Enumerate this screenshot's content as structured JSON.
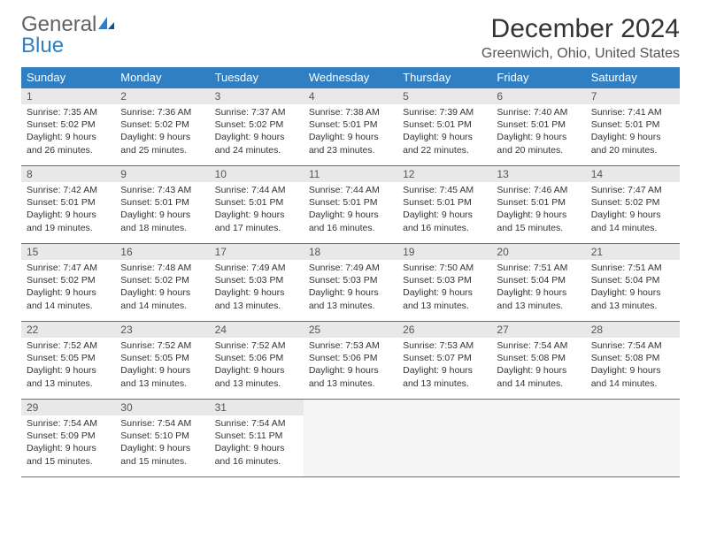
{
  "logo": {
    "general": "General",
    "blue": "Blue"
  },
  "title": "December 2024",
  "location": "Greenwich, Ohio, United States",
  "colors": {
    "header_bg": "#2f7fc2",
    "header_text": "#ffffff",
    "daynum_bg": "#e8e8e8",
    "border": "#2f7fc2",
    "empty_bg": "#f5f5f5",
    "text": "#333333"
  },
  "layout": {
    "columns": 7,
    "rows": 5,
    "first_weekday": 0,
    "days_in_month": 31
  },
  "dow": [
    "Sunday",
    "Monday",
    "Tuesday",
    "Wednesday",
    "Thursday",
    "Friday",
    "Saturday"
  ],
  "days": [
    {
      "n": 1,
      "sunrise": "7:35 AM",
      "sunset": "5:02 PM",
      "daylight": "9 hours and 26 minutes."
    },
    {
      "n": 2,
      "sunrise": "7:36 AM",
      "sunset": "5:02 PM",
      "daylight": "9 hours and 25 minutes."
    },
    {
      "n": 3,
      "sunrise": "7:37 AM",
      "sunset": "5:02 PM",
      "daylight": "9 hours and 24 minutes."
    },
    {
      "n": 4,
      "sunrise": "7:38 AM",
      "sunset": "5:01 PM",
      "daylight": "9 hours and 23 minutes."
    },
    {
      "n": 5,
      "sunrise": "7:39 AM",
      "sunset": "5:01 PM",
      "daylight": "9 hours and 22 minutes."
    },
    {
      "n": 6,
      "sunrise": "7:40 AM",
      "sunset": "5:01 PM",
      "daylight": "9 hours and 20 minutes."
    },
    {
      "n": 7,
      "sunrise": "7:41 AM",
      "sunset": "5:01 PM",
      "daylight": "9 hours and 20 minutes."
    },
    {
      "n": 8,
      "sunrise": "7:42 AM",
      "sunset": "5:01 PM",
      "daylight": "9 hours and 19 minutes."
    },
    {
      "n": 9,
      "sunrise": "7:43 AM",
      "sunset": "5:01 PM",
      "daylight": "9 hours and 18 minutes."
    },
    {
      "n": 10,
      "sunrise": "7:44 AM",
      "sunset": "5:01 PM",
      "daylight": "9 hours and 17 minutes."
    },
    {
      "n": 11,
      "sunrise": "7:44 AM",
      "sunset": "5:01 PM",
      "daylight": "9 hours and 16 minutes."
    },
    {
      "n": 12,
      "sunrise": "7:45 AM",
      "sunset": "5:01 PM",
      "daylight": "9 hours and 16 minutes."
    },
    {
      "n": 13,
      "sunrise": "7:46 AM",
      "sunset": "5:01 PM",
      "daylight": "9 hours and 15 minutes."
    },
    {
      "n": 14,
      "sunrise": "7:47 AM",
      "sunset": "5:02 PM",
      "daylight": "9 hours and 14 minutes."
    },
    {
      "n": 15,
      "sunrise": "7:47 AM",
      "sunset": "5:02 PM",
      "daylight": "9 hours and 14 minutes."
    },
    {
      "n": 16,
      "sunrise": "7:48 AM",
      "sunset": "5:02 PM",
      "daylight": "9 hours and 14 minutes."
    },
    {
      "n": 17,
      "sunrise": "7:49 AM",
      "sunset": "5:03 PM",
      "daylight": "9 hours and 13 minutes."
    },
    {
      "n": 18,
      "sunrise": "7:49 AM",
      "sunset": "5:03 PM",
      "daylight": "9 hours and 13 minutes."
    },
    {
      "n": 19,
      "sunrise": "7:50 AM",
      "sunset": "5:03 PM",
      "daylight": "9 hours and 13 minutes."
    },
    {
      "n": 20,
      "sunrise": "7:51 AM",
      "sunset": "5:04 PM",
      "daylight": "9 hours and 13 minutes."
    },
    {
      "n": 21,
      "sunrise": "7:51 AM",
      "sunset": "5:04 PM",
      "daylight": "9 hours and 13 minutes."
    },
    {
      "n": 22,
      "sunrise": "7:52 AM",
      "sunset": "5:05 PM",
      "daylight": "9 hours and 13 minutes."
    },
    {
      "n": 23,
      "sunrise": "7:52 AM",
      "sunset": "5:05 PM",
      "daylight": "9 hours and 13 minutes."
    },
    {
      "n": 24,
      "sunrise": "7:52 AM",
      "sunset": "5:06 PM",
      "daylight": "9 hours and 13 minutes."
    },
    {
      "n": 25,
      "sunrise": "7:53 AM",
      "sunset": "5:06 PM",
      "daylight": "9 hours and 13 minutes."
    },
    {
      "n": 26,
      "sunrise": "7:53 AM",
      "sunset": "5:07 PM",
      "daylight": "9 hours and 13 minutes."
    },
    {
      "n": 27,
      "sunrise": "7:54 AM",
      "sunset": "5:08 PM",
      "daylight": "9 hours and 14 minutes."
    },
    {
      "n": 28,
      "sunrise": "7:54 AM",
      "sunset": "5:08 PM",
      "daylight": "9 hours and 14 minutes."
    },
    {
      "n": 29,
      "sunrise": "7:54 AM",
      "sunset": "5:09 PM",
      "daylight": "9 hours and 15 minutes."
    },
    {
      "n": 30,
      "sunrise": "7:54 AM",
      "sunset": "5:10 PM",
      "daylight": "9 hours and 15 minutes."
    },
    {
      "n": 31,
      "sunrise": "7:54 AM",
      "sunset": "5:11 PM",
      "daylight": "9 hours and 16 minutes."
    }
  ],
  "labels": {
    "sunrise": "Sunrise: ",
    "sunset": "Sunset: ",
    "daylight": "Daylight: "
  }
}
